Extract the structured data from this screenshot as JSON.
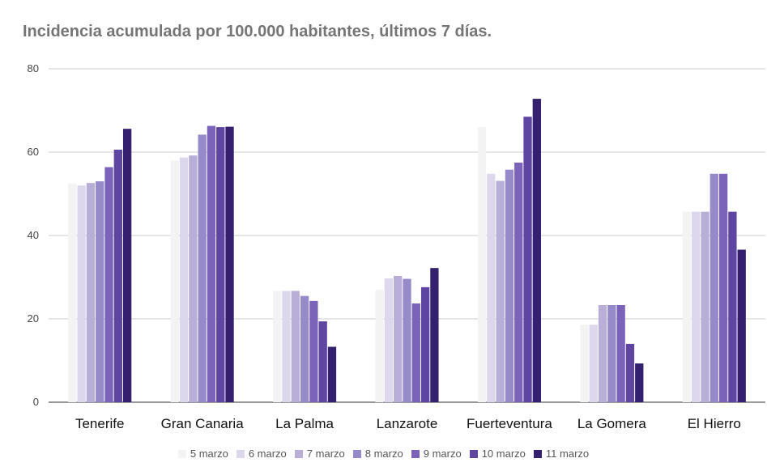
{
  "chart_data": {
    "type": "bar",
    "title": "Incidencia acumulada por 100.000 habitantes, últimos 7 días.",
    "xlabel": "",
    "ylabel": "",
    "ylim": [
      0,
      80
    ],
    "yticks": [
      0,
      20,
      40,
      60,
      80
    ],
    "grid": true,
    "legend_position": "bottom",
    "categories": [
      "Tenerife",
      "Gran Canaria",
      "La Palma",
      "Lanzarote",
      "Fuerteventura",
      "La Gomera",
      "El Hierro"
    ],
    "series": [
      {
        "name": "5 marzo",
        "color": "#f3f3f3",
        "values": [
          52.5,
          58.0,
          26.7,
          27.0,
          66.0,
          18.6,
          45.7
        ]
      },
      {
        "name": "6 marzo",
        "color": "#dcd7ec",
        "values": [
          52.0,
          58.7,
          26.7,
          29.7,
          54.8,
          18.6,
          45.7
        ]
      },
      {
        "name": "7 marzo",
        "color": "#b8aed8",
        "values": [
          52.6,
          59.2,
          26.7,
          30.3,
          53.1,
          23.3,
          45.7
        ]
      },
      {
        "name": "8 marzo",
        "color": "#978ac9",
        "values": [
          53.0,
          64.2,
          25.5,
          29.6,
          55.8,
          23.3,
          54.8
        ]
      },
      {
        "name": "9 marzo",
        "color": "#7a63b8",
        "values": [
          56.4,
          66.3,
          24.3,
          23.7,
          57.5,
          23.3,
          54.8
        ]
      },
      {
        "name": "10 marzo",
        "color": "#5e45a2",
        "values": [
          60.6,
          66.0,
          19.4,
          27.6,
          68.5,
          14.0,
          45.7
        ]
      },
      {
        "name": "11 marzo",
        "color": "#352070",
        "values": [
          65.6,
          66.1,
          13.3,
          32.2,
          72.8,
          9.3,
          36.6
        ]
      }
    ]
  }
}
